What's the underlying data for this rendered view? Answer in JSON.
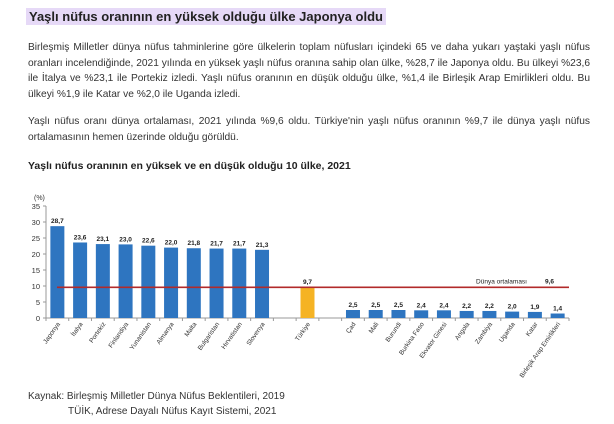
{
  "heading": "Yaşlı nüfus oranının en yüksek olduğu ülke Japonya oldu",
  "paragraphs": [
    "Birleşmiş Milletler dünya nüfus tahminlerine göre ülkelerin toplam nüfusları içindeki 65 ve daha yukarı yaştaki yaşlı nüfus oranları incelendiğinde, 2021 yılında en yüksek yaşlı nüfus oranına sahip olan ülke, %28,7 ile Japonya oldu. Bu ülkeyi %23,6 ile İtalya ve %23,1 ile Portekiz izledi. Yaşlı nüfus oranının en düşük olduğu ülke, %1,4 ile Birleşik Arap Emirlikleri oldu. Bu ülkeyi %1,9 ile Katar ve %2,0 ile Uganda izledi.",
    "Yaşlı nüfus oranı dünya ortalaması, 2021 yılında %9,6 oldu. Türkiye'nin yaşlı nüfus oranının %9,7 ile dünya yaşlı nüfus ortalamasının hemen üzerinde olduğu görüldü."
  ],
  "chart_data": {
    "type": "bar",
    "title": "Yaşlı nüfus oranının en yüksek ve en düşük olduğu 10 ülke, 2021",
    "ylabel": "(%)",
    "ylim": [
      0,
      35
    ],
    "yticks": [
      0,
      5,
      10,
      15,
      20,
      25,
      30,
      35
    ],
    "grid": false,
    "categories": [
      "Japonya",
      "İtalya",
      "Portekiz",
      "Finlandiya",
      "Yunanistan",
      "Almanya",
      "Malta",
      "Bulgaristan",
      "Hırvatistan",
      "Slovenya",
      "Türkiye",
      "Çad",
      "Mali",
      "Burundi",
      "Burkina Faso",
      "Ekvator Ginesi",
      "Angola",
      "Zambiya",
      "Uganda",
      "Katar",
      "Birleşik Arap Emirlikleri"
    ],
    "values": [
      28.7,
      23.6,
      23.1,
      23.0,
      22.6,
      22.0,
      21.8,
      21.7,
      21.7,
      21.3,
      9.7,
      2.5,
      2.5,
      2.5,
      2.4,
      2.4,
      2.2,
      2.2,
      2.0,
      1.9,
      1.4
    ],
    "labels": [
      "28,7",
      "23,6",
      "23,1",
      "23,0",
      "22,6",
      "22,0",
      "21,8",
      "21,7",
      "21,7",
      "21,3",
      "9,7",
      "2,5",
      "2,5",
      "2,5",
      "2,4",
      "2,4",
      "2,2",
      "2,2",
      "2,0",
      "1,9",
      "1,4"
    ],
    "colors": {
      "default": "#2e75c0",
      "highlight": "#f5b324",
      "average_line": "#b22a2a"
    },
    "highlight": "Türkiye",
    "average": {
      "value": 9.6,
      "label": "Dünya ortalaması",
      "value_label": "9,6"
    }
  },
  "source": {
    "label": "Kaynak: Birleşmiş Milletler Dünya Nüfus Beklentileri, 2019",
    "line2": "TÜİK, Adrese Dayalı Nüfus Kayıt Sistemi, 2021"
  }
}
